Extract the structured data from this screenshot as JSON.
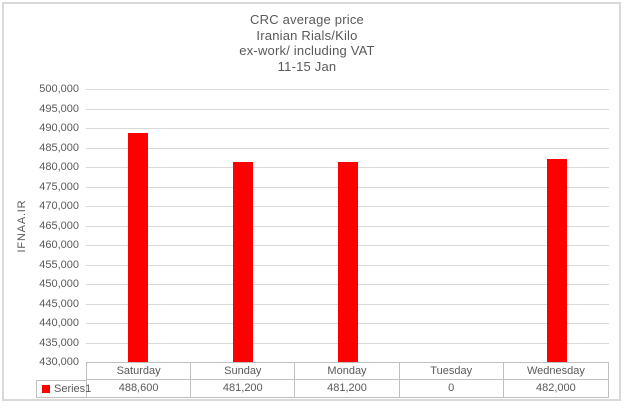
{
  "title": {
    "lines": [
      "CRC average price",
      "Iranian Rials/Kilo",
      "ex-work/ including VAT",
      "11-15 Jan"
    ]
  },
  "y_axis": {
    "label": "IFNAA.IR",
    "tick_labels": [
      "500,000",
      "495,000",
      "490,000",
      "485,000",
      "480,000",
      "475,000",
      "470,000",
      "465,000",
      "460,000",
      "455,000",
      "450,000",
      "445,000",
      "440,000",
      "435,000",
      "430,000"
    ]
  },
  "legend": {
    "label": "Series1"
  },
  "data_table": {
    "headers": [
      "Saturday",
      "Sunday",
      "Monday",
      "Tuesday",
      "Wednesday"
    ],
    "values_display": [
      "488,600",
      "481,200",
      "481,200",
      "0",
      "482,000"
    ]
  },
  "chart_data": {
    "type": "bar",
    "categories": [
      "Saturday",
      "Sunday",
      "Monday",
      "Tuesday",
      "Wednesday"
    ],
    "series": [
      {
        "name": "Series1",
        "values": [
          488600,
          481200,
          481200,
          0,
          482000
        ]
      }
    ],
    "title": "CRC average price Iranian Rials/Kilo ex-work/ including VAT 11-15 Jan",
    "xlabel": "",
    "ylabel": "IFNAA.IR",
    "ylim": [
      430000,
      500000
    ],
    "ytick_step": 5000,
    "grid": true,
    "legend_position": "data-table-left",
    "show_data_table": true
  },
  "colors": {
    "bar": "#ff0000",
    "gridline": "#d9d9d9",
    "table_border": "#bfbfbf",
    "frame_border": "#d9d9d9",
    "text": "#595959",
    "background": "#ffffff"
  }
}
